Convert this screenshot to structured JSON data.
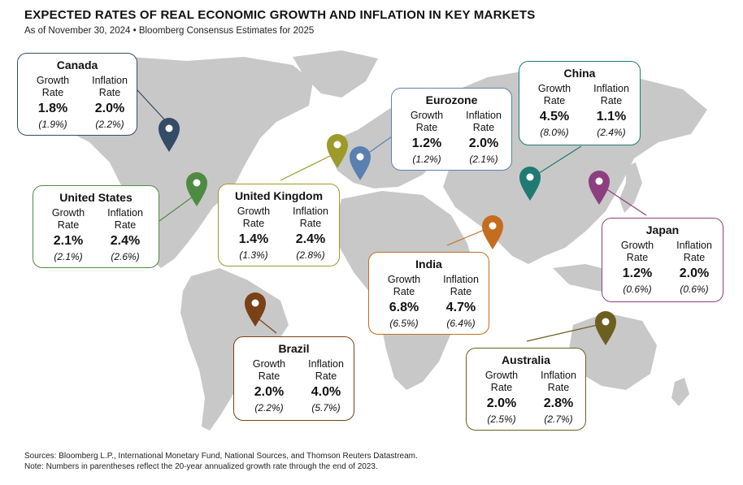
{
  "title": "EXPECTED RATES OF REAL ECONOMIC GROWTH AND INFLATION IN KEY MARKETS",
  "subtitle": "As of November 30, 2024 • Bloomberg Consensus Estimates for 2025",
  "labels": {
    "growth_line1": "Growth",
    "growth_line2": "Rate",
    "inflation_line1": "Inflation",
    "inflation_line2": "Rate"
  },
  "markets": {
    "canada": {
      "name": "Canada",
      "growth": "1.8%",
      "growth_hist": "(1.9%)",
      "inflation": "2.0%",
      "inflation_hist": "(2.2%)",
      "color": "#354b66"
    },
    "us": {
      "name": "United States",
      "growth": "2.1%",
      "growth_hist": "(2.1%)",
      "inflation": "2.4%",
      "inflation_hist": "(2.6%)",
      "color": "#4f8a42"
    },
    "uk": {
      "name": "United Kingdom",
      "growth": "1.4%",
      "growth_hist": "(1.3%)",
      "inflation": "2.4%",
      "inflation_hist": "(2.8%)",
      "color": "#9c9a2b"
    },
    "eurozone": {
      "name": "Eurozone",
      "growth": "1.2%",
      "growth_hist": "(1.2%)",
      "inflation": "2.0%",
      "inflation_hist": "(2.1%)",
      "color": "#5b80b0"
    },
    "china": {
      "name": "China",
      "growth": "4.5%",
      "growth_hist": "(8.0%)",
      "inflation": "1.1%",
      "inflation_hist": "(2.4%)",
      "color": "#1f7a72"
    },
    "japan": {
      "name": "Japan",
      "growth": "1.2%",
      "growth_hist": "(0.6%)",
      "inflation": "2.0%",
      "inflation_hist": "(0.6%)",
      "color": "#8c3f7e"
    },
    "india": {
      "name": "India",
      "growth": "6.8%",
      "growth_hist": "(6.5%)",
      "inflation": "4.7%",
      "inflation_hist": "(6.4%)",
      "color": "#c56d1e"
    },
    "brazil": {
      "name": "Brazil",
      "growth": "2.0%",
      "growth_hist": "(2.2%)",
      "inflation": "4.0%",
      "inflation_hist": "(5.7%)",
      "color": "#7a4016"
    },
    "australia": {
      "name": "Australia",
      "growth": "2.0%",
      "growth_hist": "(2.5%)",
      "inflation": "2.8%",
      "inflation_hist": "(2.7%)",
      "color": "#6b6020"
    }
  },
  "footer": {
    "sources": "Sources: Bloomberg L.P., International Monetary Fund, National Sources, and Thomson Reuters Datastream.",
    "note": "Note: Numbers in parentheses reflect the 20-year annualized growth rate through the end of 2023."
  }
}
